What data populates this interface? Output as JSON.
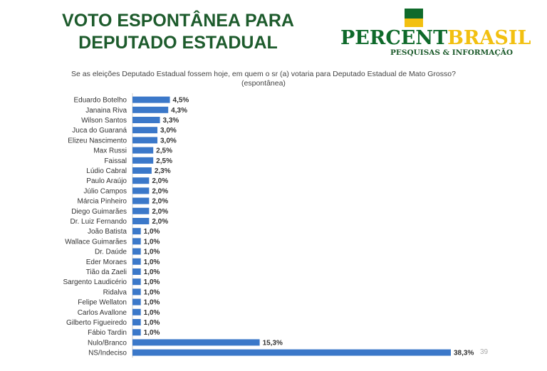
{
  "title": "VOTO ESPONTÂNEA PARA DEPUTADO ESTADUAL",
  "logo": {
    "name_part1": "PERCENT",
    "name_part2": "BRASIL",
    "tagline": "PESQUISAS & INFORMAÇÃO",
    "colors": {
      "green": "#0f6a2b",
      "yellow": "#f2c010"
    }
  },
  "question": "Se as eleições Deputado Estadual fossem hoje, em quem o sr (a) votaria para Deputado Estadual de Mato Grosso? (espontânea)",
  "page_number": "39",
  "chart_data": {
    "type": "bar",
    "orientation": "horizontal",
    "bar_color": "#3b78c9",
    "categories": [
      "Eduardo Botelho",
      "Janaina Riva",
      "Wilson Santos",
      "Juca do Guaraná",
      "Elizeu Nascimento",
      "Max Russi",
      "Faissal",
      "Lúdio Cabral",
      "Paulo Araújo",
      "Júlio Campos",
      "Márcia Pinheiro",
      "Diego Guimarães",
      "Dr. Luiz Fernando",
      "João Batista",
      "Wallace Guimarães",
      "Dr. Daúde",
      "Eder Moraes",
      "Tião da Zaeli",
      "Sargento Laudicério",
      "Ridalva",
      "Felipe Wellaton",
      "Carlos Avallone",
      "Gilberto Figueiredo",
      "Fábio Tardin",
      "Nulo/Branco",
      "NS/Indeciso"
    ],
    "values": [
      4.5,
      4.3,
      3.3,
      3.0,
      3.0,
      2.5,
      2.5,
      2.3,
      2.0,
      2.0,
      2.0,
      2.0,
      2.0,
      1.0,
      1.0,
      1.0,
      1.0,
      1.0,
      1.0,
      1.0,
      1.0,
      1.0,
      1.0,
      1.0,
      15.3,
      38.3
    ],
    "value_labels": [
      "4,5%",
      "4,3%",
      "3,3%",
      "3,0%",
      "3,0%",
      "2,5%",
      "2,5%",
      "2,3%",
      "2,0%",
      "2,0%",
      "2,0%",
      "2,0%",
      "2,0%",
      "1,0%",
      "1,0%",
      "1,0%",
      "1,0%",
      "1,0%",
      "1,0%",
      "1,0%",
      "1,0%",
      "1,0%",
      "1,0%",
      "1,0%",
      "15,3%",
      "38,3%"
    ],
    "xlim": [
      0,
      38.3
    ],
    "grid": false,
    "legend": "none"
  }
}
